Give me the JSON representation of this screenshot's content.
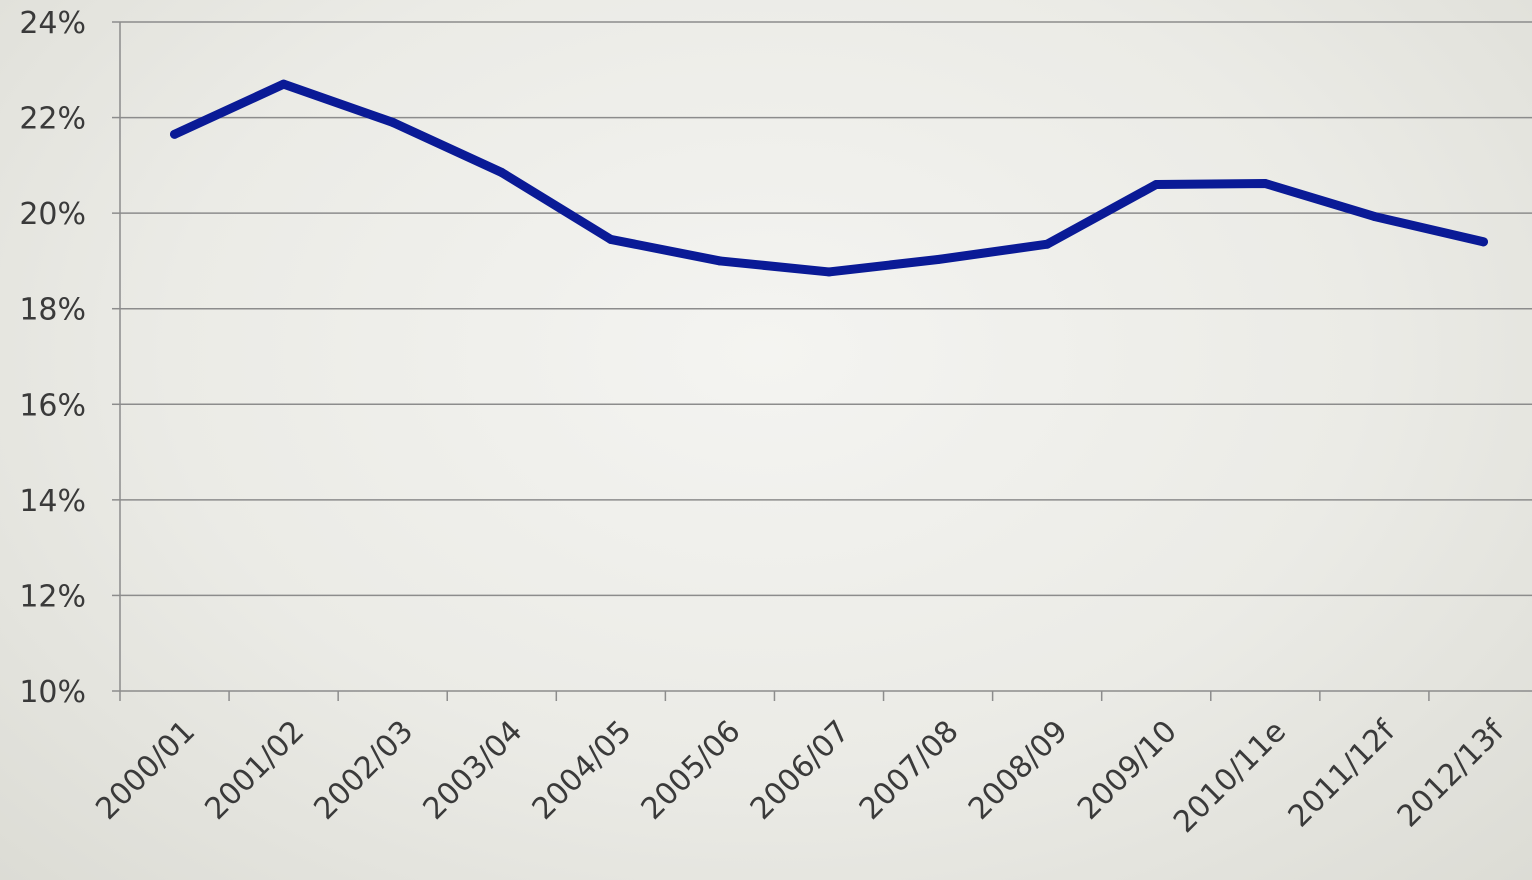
{
  "chart_data": {
    "type": "line",
    "title": "",
    "xlabel": "",
    "ylabel": "",
    "categories": [
      "2000/01",
      "2001/02",
      "2002/03",
      "2003/04",
      "2004/05",
      "2005/06",
      "2006/07",
      "2007/08",
      "2008/09",
      "2009/10",
      "2010/11e",
      "2011/12f",
      "2012/13f"
    ],
    "series": [
      {
        "values": [
          21.65,
          22.7,
          21.9,
          20.85,
          19.45,
          19.0,
          18.77,
          19.03,
          19.35,
          20.6,
          20.62,
          19.93,
          19.4
        ],
        "color": "#0a1a96"
      }
    ],
    "ylim": [
      10,
      24
    ],
    "yticks": [
      10,
      12,
      14,
      16,
      18,
      20,
      22,
      24
    ],
    "ytick_labels": [
      "10%",
      "12%",
      "14%",
      "16%",
      "18%",
      "20%",
      "22%",
      "24%"
    ],
    "grid": true,
    "legend": "none"
  }
}
